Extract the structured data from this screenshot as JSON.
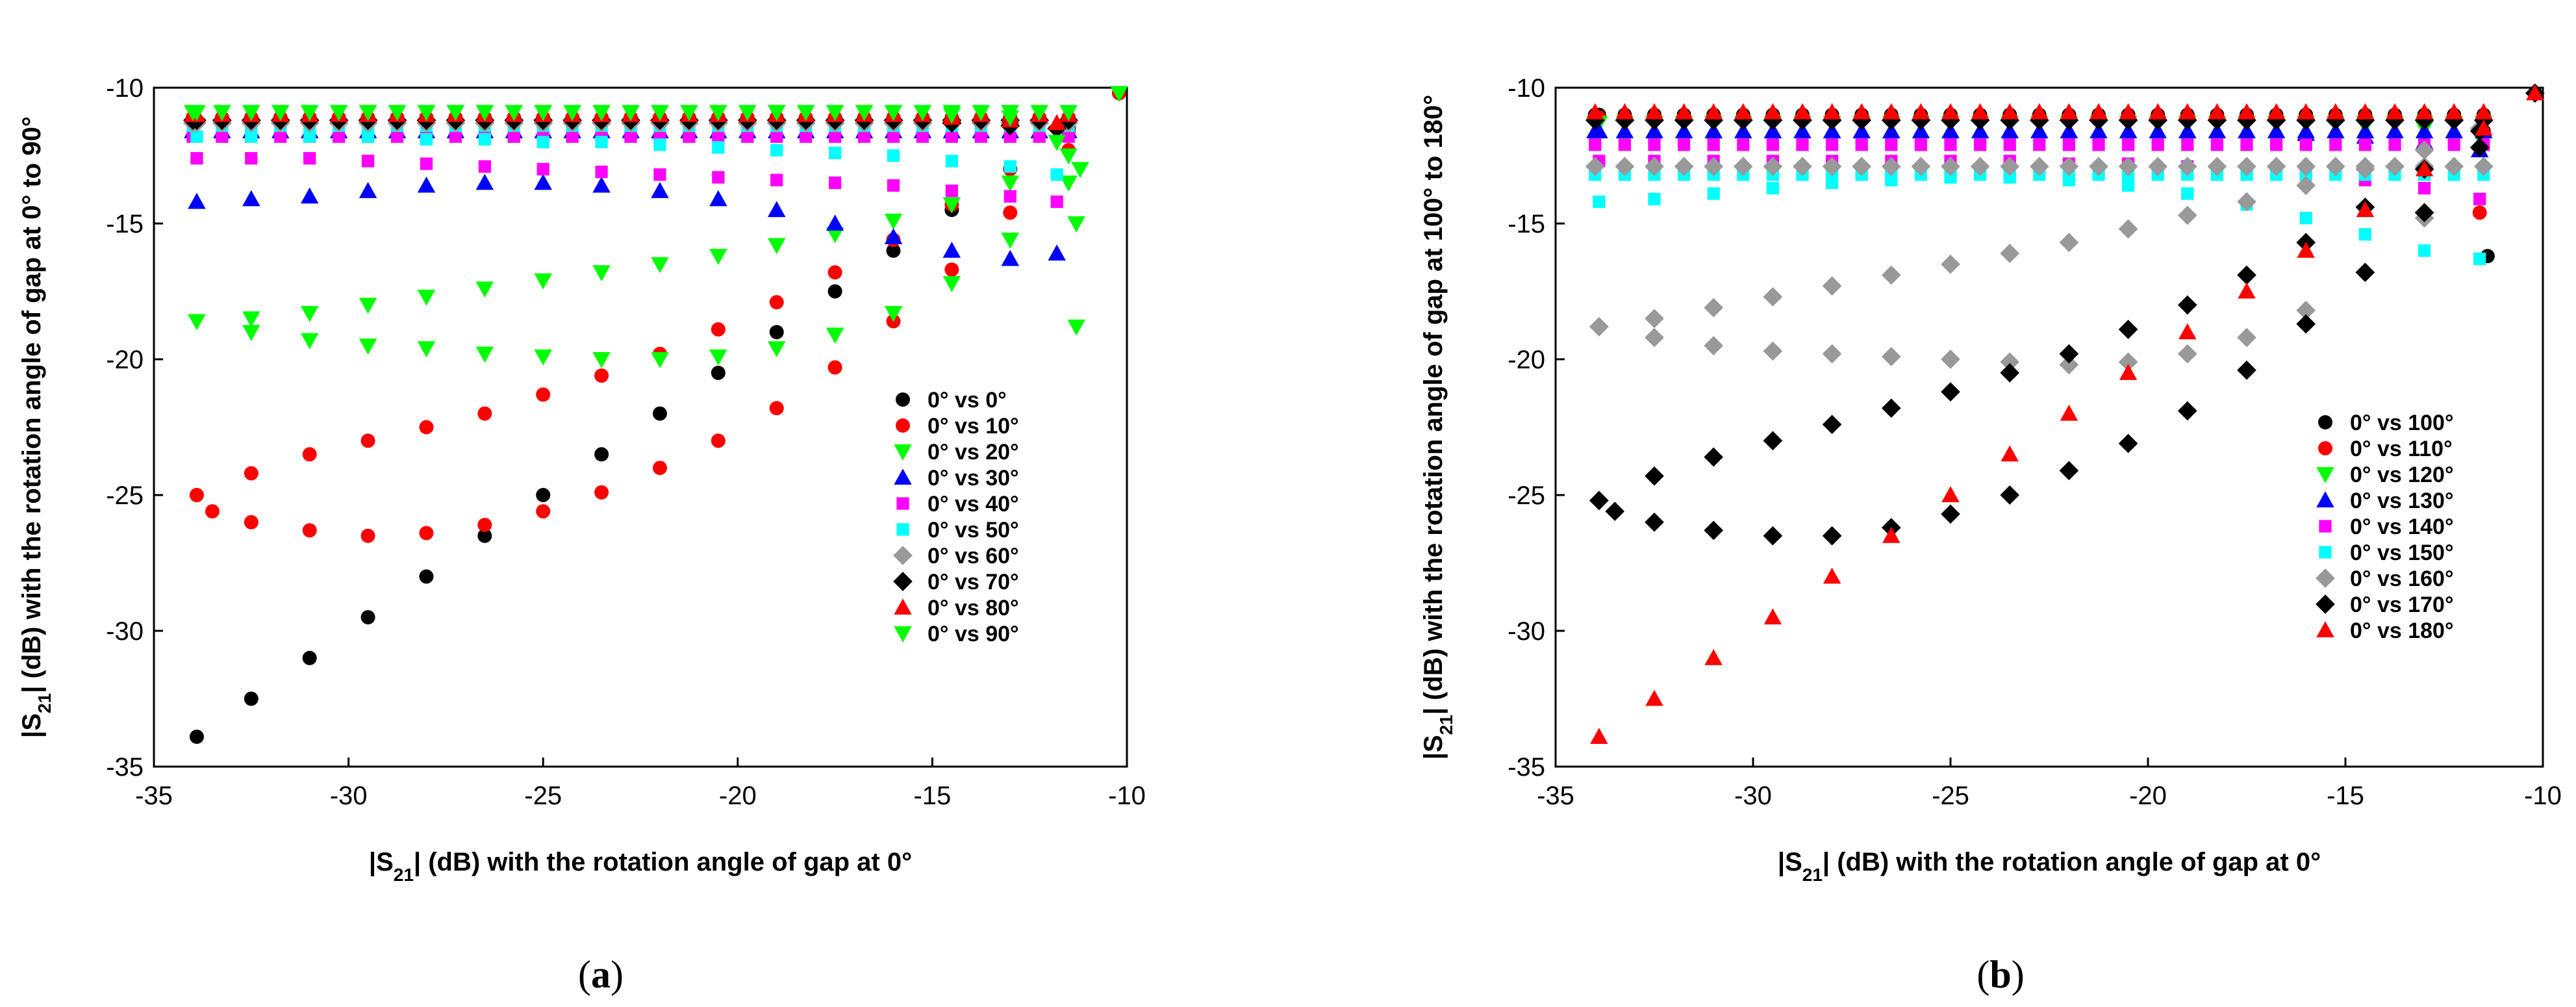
{
  "chart_data": [
    {
      "type": "scatter",
      "panel": "a",
      "xlabel_prefix": "|S",
      "xlabel_sub": "21",
      "xlabel_suffix": "| (dB) with the rotation angle of gap at 0°",
      "ylabel_prefix": "|S",
      "ylabel_sub": "21",
      "ylabel_suffix": "| (dB) with the rotation angle of gap at 0° to 90°",
      "xlim": [
        -35,
        -10
      ],
      "ylim": [
        -35,
        -10
      ],
      "xticks": [
        -35,
        -30,
        -25,
        -20,
        -15,
        -10
      ],
      "yticks": [
        -35,
        -30,
        -25,
        -20,
        -15,
        -10
      ],
      "tick_labels": [
        "-35",
        "-30",
        "-25",
        "-20",
        "-15",
        "-10"
      ],
      "legend_position": "lower-right",
      "series": [
        {
          "name": "0° vs 0°",
          "color": "#000000",
          "marker": "circle",
          "x": [
            -33.9,
            -32.5,
            -31,
            -29.5,
            -28,
            -26.5,
            -25,
            -23.5,
            -22,
            -20.5,
            -19,
            -17.5,
            -16,
            -14.5,
            -13,
            -11.5,
            -10.2
          ],
          "y": [
            -33.9,
            -32.5,
            -31,
            -29.5,
            -28,
            -26.5,
            -25,
            -23.5,
            -22,
            -20.5,
            -19,
            -17.5,
            -16,
            -14.5,
            -13,
            -11.5,
            -10.2
          ],
          "top_band_y": -11.2
        },
        {
          "name": "0° vs 10°",
          "color": "#ff0000",
          "marker": "circle",
          "x": [
            -33.9,
            -33.5,
            -32.5,
            -31,
            -29.5,
            -28,
            -26.5,
            -25,
            -23.5,
            -22,
            -20.5,
            -19,
            -17.5,
            -16,
            -14.5,
            -13,
            -11.5,
            -10.2
          ],
          "y": [
            -25,
            -25.6,
            -26,
            -26.3,
            -26.5,
            -26.4,
            -26.1,
            -25.6,
            -24.9,
            -24,
            -23,
            -21.8,
            -20.3,
            -18.6,
            -16.7,
            -14.6,
            -12.3,
            -10.2
          ],
          "x2": [
            -33.9,
            -32.5,
            -31,
            -29.5,
            -28,
            -26.5,
            -25,
            -23.5,
            -22,
            -20.5,
            -19,
            -17.5,
            -16,
            -14.5,
            -13,
            -11.5
          ],
          "y2": [
            -25,
            -24.2,
            -23.5,
            -23,
            -22.5,
            -22,
            -21.3,
            -20.6,
            -19.8,
            -18.9,
            -17.9,
            -16.8,
            -15.6,
            -14.3,
            -13,
            -11.6
          ],
          "top_band_y": -11.1
        },
        {
          "name": "0° vs 20°",
          "color": "#00ff00",
          "marker": "triangle-down",
          "x": [
            -33.9,
            -32.5,
            -31,
            -29.5,
            -28,
            -26.5,
            -25,
            -23.5,
            -22,
            -20.5,
            -19,
            -17.5,
            -16,
            -14.5,
            -13,
            -11.5
          ],
          "y": [
            -18.6,
            -18.5,
            -18.3,
            -18,
            -17.7,
            -17.4,
            -17.1,
            -16.8,
            -16.5,
            -16.2,
            -15.8,
            -15.4,
            -14.9,
            -14.3,
            -13.5,
            -12.5
          ],
          "x2": [
            -33.9,
            -32.5,
            -31,
            -29.5,
            -28,
            -26.5,
            -25,
            -23.5,
            -22,
            -20.5,
            -19,
            -17.5,
            -16,
            -14.5,
            -13,
            -11.5
          ],
          "y2": [
            -18.6,
            -19,
            -19.3,
            -19.5,
            -19.6,
            -19.8,
            -19.9,
            -20,
            -20,
            -19.9,
            -19.6,
            -19.1,
            -18.3,
            -17.2,
            -15.6,
            -13.5
          ],
          "top_band_y": -10.9
        },
        {
          "name": "0° vs 30°",
          "color": "#0000ff",
          "marker": "triangle-up",
          "x": [
            -33.9,
            -32.5,
            -31,
            -29.5,
            -28,
            -26.5,
            -25,
            -23.5,
            -22,
            -20.5,
            -19,
            -17.5,
            -16,
            -14.5,
            -13,
            -11.8
          ],
          "y": [
            -14.2,
            -14.1,
            -14,
            -13.8,
            -13.6,
            -13.5,
            -13.5,
            -13.6,
            -13.8,
            -14.1,
            -14.5,
            -15,
            -15.5,
            -16,
            -16.3,
            -16.1
          ],
          "top_band_y": -11.6
        },
        {
          "name": "0° vs 40°",
          "color": "#ff00ff",
          "marker": "square",
          "x": [
            -33.9,
            -32.5,
            -31,
            -29.5,
            -28,
            -26.5,
            -25,
            -23.5,
            -22,
            -20.5,
            -19,
            -17.5,
            -16,
            -14.5,
            -13,
            -11.8
          ],
          "y": [
            -12.6,
            -12.6,
            -12.6,
            -12.7,
            -12.8,
            -12.9,
            -13,
            -13.1,
            -13.2,
            -13.3,
            -13.4,
            -13.5,
            -13.6,
            -13.8,
            -14,
            -14.2
          ],
          "top_band_y": -11.8
        },
        {
          "name": "0° vs 50°",
          "color": "#00ffff",
          "marker": "square",
          "x": [
            -33.9,
            -32.5,
            -31,
            -29.5,
            -28,
            -26.5,
            -25,
            -23.5,
            -22,
            -20.5,
            -19,
            -17.5,
            -16,
            -14.5,
            -13,
            -11.8
          ],
          "y": [
            -11.8,
            -11.8,
            -11.8,
            -11.8,
            -11.9,
            -11.9,
            -12,
            -12,
            -12.1,
            -12.2,
            -12.3,
            -12.4,
            -12.5,
            -12.7,
            -12.9,
            -13.2
          ],
          "top_band_y": -11.4
        },
        {
          "name": "0° vs 60°",
          "color": "#999999",
          "marker": "diamond",
          "x": [
            -33.9,
            -32.5,
            -31,
            -29.5,
            -28,
            -26.5,
            -25,
            -23.5,
            -22,
            -20.5,
            -19,
            -17.5,
            -16,
            -14.5,
            -13,
            -11.8
          ],
          "y": [
            -11.3,
            -11.3,
            -11.3,
            -11.3,
            -11.3,
            -11.3,
            -11.3,
            -11.3,
            -11.3,
            -11.3,
            -11.3,
            -11.3,
            -11.3,
            -11.3,
            -11.4,
            -11.5
          ],
          "top_band_y": -11.3
        },
        {
          "name": "0° vs 70°",
          "color": "#000000",
          "marker": "diamond",
          "x": [
            -33.9,
            -32.5,
            -31,
            -29.5,
            -28,
            -26.5,
            -25,
            -23.5,
            -22,
            -20.5,
            -19,
            -17.5,
            -16,
            -14.5,
            -13,
            -11.8
          ],
          "y": [
            -11.2,
            -11.2,
            -11.2,
            -11.2,
            -11.2,
            -11.2,
            -11.2,
            -11.2,
            -11.2,
            -11.2,
            -11.2,
            -11.2,
            -11.2,
            -11.3,
            -11.4,
            -11.5
          ],
          "top_band_y": -11.2
        },
        {
          "name": "0° vs 80°",
          "color": "#ff0000",
          "marker": "triangle-up",
          "x": [
            -33.9,
            -32.5,
            -31,
            -29.5,
            -28,
            -26.5,
            -25,
            -23.5,
            -22,
            -20.5,
            -19,
            -17.5,
            -16,
            -14.5,
            -13,
            -11.8
          ],
          "y": [
            -11,
            -11,
            -11,
            -11,
            -11,
            -11,
            -11,
            -11,
            -11,
            -11,
            -11,
            -11,
            -11,
            -11.1,
            -11.2,
            -11.3
          ],
          "top_band_y": -11
        },
        {
          "name": "0° vs 90°",
          "color": "#00ff00",
          "marker": "triangle-down",
          "x": [
            -33.9,
            -32.5,
            -31,
            -29.5,
            -28,
            -26.5,
            -25,
            -23.5,
            -22,
            -20.5,
            -19,
            -17.5,
            -16,
            -14.5,
            -13,
            -11.8,
            -11.3,
            -11.3,
            -11.2,
            -10.2
          ],
          "y": [
            -10.9,
            -10.9,
            -10.9,
            -10.9,
            -10.9,
            -10.9,
            -10.9,
            -10.9,
            -10.9,
            -10.9,
            -10.9,
            -10.9,
            -10.9,
            -11,
            -11.1,
            -12,
            -15,
            -18.8,
            -13,
            -10.2
          ],
          "top_band_y": -10.9
        }
      ]
    },
    {
      "type": "scatter",
      "panel": "b",
      "xlabel_prefix": "|S",
      "xlabel_sub": "21",
      "xlabel_suffix": "| (dB) with the rotation angle of gap at 0°",
      "ylabel_prefix": "|S",
      "ylabel_sub": "21",
      "ylabel_suffix": "| (dB) with the rotation angle of gap at 100° to 180°",
      "xlim": [
        -35,
        -10
      ],
      "ylim": [
        -35,
        -10
      ],
      "xticks": [
        -35,
        -30,
        -25,
        -20,
        -15,
        -10
      ],
      "yticks": [
        -35,
        -30,
        -25,
        -20,
        -15,
        -10
      ],
      "tick_labels": [
        "-35",
        "-30",
        "-25",
        "-20",
        "-15",
        "-10"
      ],
      "legend_position": "lower-right",
      "series": [
        {
          "name": "0° vs 100°",
          "color": "#000000",
          "marker": "circle",
          "x": [
            -33.9,
            -32.5,
            -31,
            -29.5,
            -28,
            -26.5,
            -25,
            -23.5,
            -22,
            -20.5,
            -19,
            -17.5,
            -16,
            -14.5,
            -13,
            -11.5,
            -11.4,
            -10.2
          ],
          "y": [
            -11,
            -11,
            -11,
            -11,
            -11,
            -11,
            -11,
            -11,
            -11,
            -11,
            -11,
            -11,
            -11,
            -11.1,
            -11.3,
            -11.6,
            -16.2,
            -10.2
          ],
          "top_band_y": -11
        },
        {
          "name": "0° vs 110°",
          "color": "#ff0000",
          "marker": "circle",
          "x": [
            -33.9,
            -32.5,
            -31,
            -29.5,
            -28,
            -26.5,
            -25,
            -23.5,
            -22,
            -20.5,
            -19,
            -17.5,
            -16,
            -14.5,
            -13,
            -11.6
          ],
          "y": [
            -11.1,
            -11.1,
            -11.1,
            -11.1,
            -11.1,
            -11.1,
            -11.1,
            -11.1,
            -11.1,
            -11.1,
            -11.1,
            -11.1,
            -11.1,
            -11.2,
            -11.3,
            -14.6
          ],
          "top_band_y": -11.1
        },
        {
          "name": "0° vs 120°",
          "color": "#00ff00",
          "marker": "triangle-down",
          "x": [
            -33.9,
            -32.5,
            -31,
            -29.5,
            -28,
            -26.5,
            -25,
            -23.5,
            -22,
            -20.5,
            -19,
            -17.5,
            -16,
            -14.5,
            -13,
            -11.6
          ],
          "y": [
            -11.3,
            -11.3,
            -11.3,
            -11.3,
            -11.3,
            -11.3,
            -11.3,
            -11.3,
            -11.3,
            -11.3,
            -11.3,
            -11.3,
            -11.3,
            -11.4,
            -11.5,
            -11.8
          ],
          "top_band_y": -11.3
        },
        {
          "name": "0° vs 130°",
          "color": "#0000ff",
          "marker": "triangle-up",
          "x": [
            -33.9,
            -32.5,
            -31,
            -29.5,
            -28,
            -26.5,
            -25,
            -23.5,
            -22,
            -20.5,
            -19,
            -17.5,
            -16,
            -14.5,
            -13,
            -11.6
          ],
          "y": [
            -11.6,
            -11.6,
            -11.6,
            -11.6,
            -11.6,
            -11.6,
            -11.6,
            -11.6,
            -11.6,
            -11.6,
            -11.6,
            -11.6,
            -11.7,
            -11.8,
            -12,
            -12.3
          ],
          "top_band_y": -11.6
        },
        {
          "name": "0° vs 140°",
          "color": "#ff00ff",
          "marker": "square",
          "x": [
            -33.9,
            -32.5,
            -31,
            -29.5,
            -28,
            -26.5,
            -25,
            -23.5,
            -22,
            -20.5,
            -19,
            -17.5,
            -16,
            -14.5,
            -13,
            -11.6
          ],
          "y": [
            -12.7,
            -12.7,
            -12.7,
            -12.7,
            -12.7,
            -12.7,
            -12.7,
            -12.7,
            -12.8,
            -12.8,
            -12.9,
            -13,
            -13.2,
            -13.4,
            -13.7,
            -14.1
          ],
          "top_band_y": -12.1
        },
        {
          "name": "0° vs 150°",
          "color": "#00ffff",
          "marker": "square",
          "x": [
            -33.9,
            -32.5,
            -31,
            -29.5,
            -28,
            -26.5,
            -25,
            -23.5,
            -22,
            -20.5,
            -19,
            -17.5,
            -16,
            -14.5,
            -13,
            -11.6
          ],
          "y": [
            -14.2,
            -14.1,
            -13.9,
            -13.7,
            -13.5,
            -13.4,
            -13.3,
            -13.3,
            -13.4,
            -13.6,
            -13.9,
            -14.3,
            -14.8,
            -15.4,
            -16,
            -16.3
          ],
          "top_band_y": -13.2
        },
        {
          "name": "0° vs 160°",
          "color": "#999999",
          "marker": "diamond",
          "x": [
            -33.9,
            -32.5,
            -31,
            -29.5,
            -28,
            -26.5,
            -25,
            -23.5,
            -22,
            -20.5,
            -19,
            -17.5,
            -16,
            -14.5,
            -13,
            -11.6
          ],
          "y": [
            -18.8,
            -18.5,
            -18.1,
            -17.7,
            -17.3,
            -16.9,
            -16.5,
            -16.1,
            -15.7,
            -15.2,
            -14.7,
            -14.2,
            -13.6,
            -13,
            -12.3,
            -11.5
          ],
          "x2": [
            -33.9,
            -32.5,
            -31,
            -29.5,
            -28,
            -26.5,
            -25,
            -23.5,
            -22,
            -20.5,
            -19,
            -17.5,
            -16,
            -14.5,
            -13,
            -11.6
          ],
          "y2": [
            -18.8,
            -19.2,
            -19.5,
            -19.7,
            -19.8,
            -19.9,
            -20,
            -20.1,
            -20.2,
            -20.1,
            -19.8,
            -19.2,
            -18.2,
            -16.8,
            -14.8,
            -12.2
          ],
          "top_band_y": -12.9
        },
        {
          "name": "0° vs 170°",
          "color": "#000000",
          "marker": "diamond",
          "x": [
            -33.9,
            -32.5,
            -31,
            -29.5,
            -28,
            -26.5,
            -25,
            -23.5,
            -22,
            -20.5,
            -19,
            -17.5,
            -16,
            -14.5,
            -13,
            -11.6,
            -10.2
          ],
          "y": [
            -25.2,
            -24.3,
            -23.6,
            -23,
            -22.4,
            -21.8,
            -21.2,
            -20.5,
            -19.8,
            -18.9,
            -18,
            -16.9,
            -15.7,
            -14.4,
            -13,
            -11.6,
            -10.2
          ],
          "x2": [
            -33.9,
            -33.5,
            -32.5,
            -31,
            -29.5,
            -28,
            -26.5,
            -25,
            -23.5,
            -22,
            -20.5,
            -19,
            -17.5,
            -16,
            -14.5,
            -13,
            -11.6
          ],
          "y2": [
            -25.2,
            -25.6,
            -26,
            -26.3,
            -26.5,
            -26.5,
            -26.2,
            -25.7,
            -25,
            -24.1,
            -23.1,
            -21.9,
            -20.4,
            -18.7,
            -16.8,
            -14.6,
            -12.2
          ],
          "top_band_y": -11.2
        },
        {
          "name": "0° vs 180°",
          "color": "#ff0000",
          "marker": "triangle-up",
          "x": [
            -33.9,
            -32.5,
            -31,
            -29.5,
            -28,
            -26.5,
            -25,
            -23.5,
            -22,
            -20.5,
            -19,
            -17.5,
            -16,
            -14.5,
            -13,
            -11.5,
            -10.2
          ],
          "y": [
            -33.9,
            -32.5,
            -31,
            -29.5,
            -28,
            -26.5,
            -25,
            -23.5,
            -22,
            -20.5,
            -19,
            -17.5,
            -16,
            -14.5,
            -13,
            -11.5,
            -10.2
          ],
          "top_band_y": -10.9
        }
      ]
    }
  ],
  "panel_labels": [
    {
      "open": "(",
      "letter": "a",
      "close": ")"
    },
    {
      "open": "(",
      "letter": "b",
      "close": ")"
    }
  ]
}
